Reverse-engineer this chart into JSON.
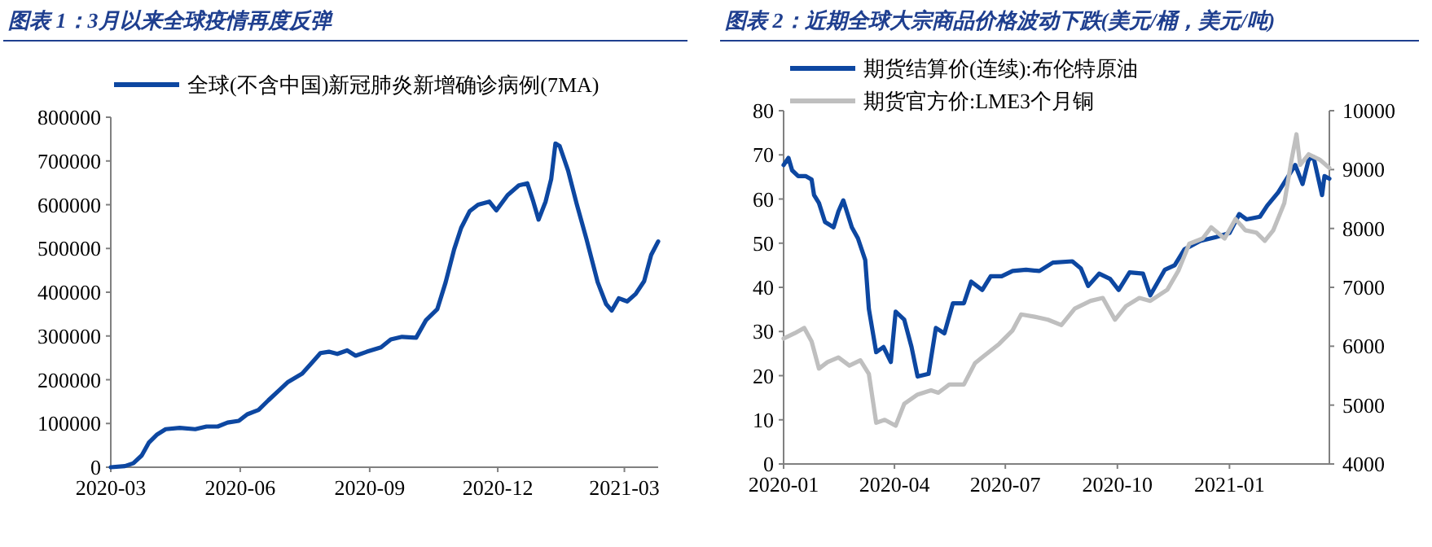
{
  "chart_data": [
    {
      "type": "line",
      "title": "图表 1：3月以来全球疫情再度反弹",
      "legend": "top",
      "grid": false,
      "x": [
        "2020-03-01",
        "2020-03-11",
        "2020-03-17",
        "2020-03-23",
        "2020-03-28",
        "2020-04-03",
        "2020-04-09",
        "2020-04-19",
        "2020-04-30",
        "2020-05-08",
        "2020-05-16",
        "2020-05-23",
        "2020-05-31",
        "2020-06-06",
        "2020-06-14",
        "2020-06-21",
        "2020-06-29",
        "2020-07-05",
        "2020-07-15",
        "2020-07-22",
        "2020-07-28",
        "2020-08-03",
        "2020-08-09",
        "2020-08-16",
        "2020-08-22",
        "2020-08-30",
        "2020-09-09",
        "2020-09-16",
        "2020-09-24",
        "2020-10-04",
        "2020-10-11",
        "2020-10-19",
        "2020-10-25",
        "2020-10-31",
        "2020-11-05",
        "2020-11-11",
        "2020-11-17",
        "2020-11-25",
        "2020-11-30",
        "2020-12-08",
        "2020-12-16",
        "2020-12-22",
        "2020-12-26",
        "2020-12-30",
        "2021-01-04",
        "2021-01-08",
        "2021-01-11",
        "2021-01-14",
        "2021-01-20",
        "2021-01-26",
        "2021-02-02",
        "2021-02-10",
        "2021-02-16",
        "2021-02-20",
        "2021-02-25",
        "2021-03-03",
        "2021-03-09",
        "2021-03-15",
        "2021-03-20",
        "2021-03-25"
      ],
      "series": [
        {
          "name": "全球(不含中国)新冠肺炎新增确诊病例(7MA)",
          "color": "#0D47A1",
          "values": [
            0,
            2500,
            9000,
            27000,
            56000,
            75000,
            87000,
            90000,
            87000,
            93000,
            93000,
            102000,
            106000,
            121000,
            131000,
            153000,
            177000,
            195000,
            214000,
            239000,
            261000,
            264000,
            259000,
            267000,
            255000,
            264000,
            274000,
            292000,
            298000,
            296000,
            336000,
            361000,
            423000,
            498000,
            547000,
            585000,
            600000,
            607000,
            587000,
            622000,
            644000,
            649000,
            610000,
            566000,
            607000,
            659000,
            740000,
            734000,
            678000,
            603000,
            522000,
            423000,
            373000,
            358000,
            386000,
            379000,
            396000,
            425000,
            485000,
            516000
          ]
        }
      ],
      "xlim": [
        "2020-03-01",
        "2021-03-25"
      ],
      "xticks": [
        {
          "value": "2020-03-01",
          "label": "2020-03"
        },
        {
          "value": "2020-06-01",
          "label": "2020-06"
        },
        {
          "value": "2020-09-01",
          "label": "2020-09"
        },
        {
          "value": "2020-12-01",
          "label": "2020-12"
        },
        {
          "value": "2021-03-01",
          "label": "2021-03"
        }
      ],
      "ylim": [
        0,
        800000
      ],
      "yticks": [
        0,
        100000,
        200000,
        300000,
        400000,
        500000,
        600000,
        700000,
        800000
      ]
    },
    {
      "type": "line",
      "title": "图表 2：近期全球大宗商品价格波动下跌(美元/桶，美元/吨)",
      "legend": "top",
      "grid": false,
      "series": [
        {
          "name": "期货结算价(连续):布伦特原油",
          "color": "#0D47A1",
          "x": [
            "2020-01-01",
            "2020-01-05",
            "2020-01-08",
            "2020-01-13",
            "2020-01-19",
            "2020-01-24",
            "2020-01-26",
            "2020-01-30",
            "2020-02-04",
            "2020-02-11",
            "2020-02-15",
            "2020-02-19",
            "2020-02-26",
            "2020-03-02",
            "2020-03-08",
            "2020-03-11",
            "2020-03-17",
            "2020-03-23",
            "2020-03-29",
            "2020-04-02",
            "2020-04-09",
            "2020-04-15",
            "2020-04-20",
            "2020-04-29",
            "2020-05-05",
            "2020-05-12",
            "2020-05-19",
            "2020-05-28",
            "2020-06-03",
            "2020-06-12",
            "2020-06-19",
            "2020-06-28",
            "2020-07-07",
            "2020-07-18",
            "2020-07-29",
            "2020-08-09",
            "2020-08-25",
            "2020-09-01",
            "2020-09-07",
            "2020-09-16",
            "2020-09-25",
            "2020-10-02",
            "2020-10-11",
            "2020-10-22",
            "2020-10-28",
            "2020-11-09",
            "2020-11-17",
            "2020-11-25",
            "2020-12-08",
            "2020-12-21",
            "2021-01-01",
            "2021-01-09",
            "2021-01-15",
            "2021-01-26",
            "2021-02-01",
            "2021-02-10",
            "2021-02-24",
            "2021-03-02",
            "2021-03-07",
            "2021-03-11",
            "2021-03-18",
            "2021-03-20",
            "2021-03-24"
          ],
          "values": [
            67.7,
            69.3,
            66.5,
            65.2,
            65.2,
            64.4,
            60.9,
            59.1,
            54.8,
            53.6,
            57.2,
            59.7,
            53.6,
            51.1,
            46.2,
            35.1,
            25.3,
            26.5,
            23.1,
            34.5,
            32.7,
            26.5,
            19.8,
            20.4,
            30.8,
            29.6,
            36.4,
            36.4,
            41.3,
            39.4,
            42.5,
            42.5,
            43.7,
            44.0,
            43.7,
            45.6,
            45.9,
            44.3,
            40.3,
            43.1,
            41.9,
            39.4,
            43.4,
            43.1,
            38.2,
            44.0,
            45.0,
            48.6,
            50.5,
            51.4,
            52.3,
            56.6,
            55.4,
            56.0,
            58.5,
            61.5,
            67.7,
            63.4,
            68.9,
            69.5,
            60.9,
            65.2,
            64.6
          ]
        },
        {
          "name": "期货官方价:LME3个月铜",
          "color": "#BFBFBF",
          "axis": "y2",
          "x": [
            "2020-01-01",
            "2020-01-10",
            "2020-01-18",
            "2020-01-24",
            "2020-01-30",
            "2020-02-06",
            "2020-02-15",
            "2020-02-24",
            "2020-03-04",
            "2020-03-11",
            "2020-03-17",
            "2020-03-24",
            "2020-04-02",
            "2020-04-09",
            "2020-04-20",
            "2020-05-01",
            "2020-05-07",
            "2020-05-16",
            "2020-05-28",
            "2020-06-06",
            "2020-06-12",
            "2020-06-26",
            "2020-07-07",
            "2020-07-14",
            "2020-07-25",
            "2020-08-05",
            "2020-08-16",
            "2020-08-27",
            "2020-09-09",
            "2020-09-19",
            "2020-09-29",
            "2020-10-08",
            "2020-10-19",
            "2020-10-28",
            "2020-11-11",
            "2020-11-20",
            "2020-11-29",
            "2020-12-10",
            "2020-12-17",
            "2020-12-28",
            "2021-01-06",
            "2021-01-14",
            "2021-01-23",
            "2021-01-30",
            "2021-02-06",
            "2021-02-15",
            "2021-02-21",
            "2021-02-25",
            "2021-02-28",
            "2021-03-07",
            "2021-03-16",
            "2021-03-24"
          ],
          "values": [
            6130,
            6220,
            6310,
            6080,
            5620,
            5730,
            5810,
            5670,
            5760,
            5530,
            4700,
            4750,
            4650,
            5020,
            5180,
            5250,
            5210,
            5350,
            5350,
            5710,
            5810,
            6040,
            6270,
            6540,
            6500,
            6450,
            6360,
            6640,
            6770,
            6820,
            6450,
            6680,
            6820,
            6770,
            6960,
            7280,
            7740,
            7830,
            8020,
            7830,
            8160,
            7970,
            7930,
            7790,
            7970,
            8430,
            9170,
            9600,
            9080,
            9260,
            9170,
            9030
          ]
        }
      ],
      "xlim": [
        "2020-01-01",
        "2021-03-24"
      ],
      "xticks": [
        {
          "value": "2020-01-01",
          "label": "2020-01"
        },
        {
          "value": "2020-04-01",
          "label": "2020-04"
        },
        {
          "value": "2020-07-01",
          "label": "2020-07"
        },
        {
          "value": "2020-10-01",
          "label": "2020-10"
        },
        {
          "value": "2021-01-01",
          "label": "2021-01"
        }
      ],
      "ylim": [
        0,
        80
      ],
      "yticks": [
        0,
        10,
        20,
        30,
        40,
        50,
        60,
        70,
        80
      ],
      "y2lim": [
        4000,
        10000
      ],
      "y2ticks": [
        4000,
        5000,
        6000,
        7000,
        8000,
        9000,
        10000
      ]
    }
  ]
}
